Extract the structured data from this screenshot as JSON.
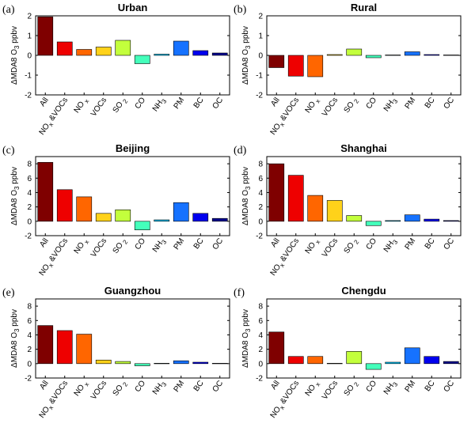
{
  "figure": {
    "colors": [
      "#7f0000",
      "#ee0000",
      "#ff6600",
      "#ffd21a",
      "#c3ff3c",
      "#44ffbb",
      "#00c7ff",
      "#1672ff",
      "#0000ee",
      "#00008f"
    ]
  },
  "chart_data": [
    {
      "type": "bar",
      "panel": "(a)",
      "title": "Urban",
      "ylabel": "ΔMDA8 O3 ppbv",
      "ylim": [
        -2,
        2
      ],
      "yticks": [
        -2,
        -1,
        0,
        1,
        2
      ],
      "categories": [
        "All",
        "NOx&VOCs",
        "NOx",
        "VOCs",
        "SO2",
        "CO",
        "NH3",
        "PM",
        "BC",
        "OC"
      ],
      "values": [
        1.95,
        0.68,
        0.3,
        0.42,
        0.76,
        -0.42,
        0.06,
        0.72,
        0.24,
        0.12
      ]
    },
    {
      "type": "bar",
      "panel": "(b)",
      "title": "Rural",
      "ylabel": "ΔMDA8 O3 ppbv",
      "ylim": [
        -2,
        2
      ],
      "yticks": [
        -2,
        -1,
        0,
        1,
        2
      ],
      "categories": [
        "All",
        "NOx&VOCs",
        "NOx",
        "VOCs",
        "SO2",
        "CO",
        "NH3",
        "PM",
        "BC",
        "OC"
      ],
      "values": [
        -0.62,
        -1.05,
        -1.08,
        0.04,
        0.32,
        -0.12,
        0.02,
        0.18,
        0.04,
        0.02
      ]
    },
    {
      "type": "bar",
      "panel": "(c)",
      "title": "Beijing",
      "ylabel": "ΔMDA8 O3 ppbv",
      "ylim": [
        -2,
        9
      ],
      "yticks": [
        -2,
        0,
        2,
        4,
        6,
        8
      ],
      "categories": [
        "All",
        "NOx&VOCs",
        "NOx",
        "VOCs",
        "SO2",
        "CO",
        "NH3",
        "PM",
        "BC",
        "OC"
      ],
      "values": [
        8.2,
        4.4,
        3.4,
        1.1,
        1.6,
        -1.2,
        0.2,
        2.6,
        1.1,
        0.4
      ]
    },
    {
      "type": "bar",
      "panel": "(d)",
      "title": "Shanghai",
      "ylabel": "ΔMDA8 O3 ppbv",
      "ylim": [
        -2,
        9
      ],
      "yticks": [
        -2,
        0,
        2,
        4,
        6,
        8
      ],
      "categories": [
        "All",
        "NOx&VOCs",
        "NOx",
        "VOCs",
        "SO2",
        "CO",
        "NH3",
        "PM",
        "BC",
        "OC"
      ],
      "values": [
        8.0,
        6.4,
        3.6,
        2.9,
        0.8,
        -0.6,
        0.1,
        0.9,
        0.3,
        0.1
      ]
    },
    {
      "type": "bar",
      "panel": "(e)",
      "title": "Guangzhou",
      "ylabel": "ΔMDA8 O3 ppbv",
      "ylim": [
        -2,
        9
      ],
      "yticks": [
        -2,
        0,
        2,
        4,
        6,
        8
      ],
      "categories": [
        "All",
        "NOx&VOCs",
        "NOx",
        "VOCs",
        "SO2",
        "CO",
        "NH3",
        "PM",
        "BC",
        "OC"
      ],
      "values": [
        5.3,
        4.6,
        4.1,
        0.5,
        0.3,
        -0.3,
        0.05,
        0.4,
        0.2,
        0.05
      ]
    },
    {
      "type": "bar",
      "panel": "(f)",
      "title": "Chengdu",
      "ylabel": "ΔMDA8 O3 ppbv",
      "ylim": [
        -2,
        9
      ],
      "yticks": [
        -2,
        0,
        2,
        4,
        6,
        8
      ],
      "categories": [
        "All",
        "NOx&VOCs",
        "NOx",
        "VOCs",
        "SO2",
        "CO",
        "NH3",
        "PM",
        "BC",
        "OC"
      ],
      "values": [
        4.4,
        1.0,
        1.0,
        0.05,
        1.7,
        -0.8,
        0.2,
        2.2,
        1.0,
        0.3
      ]
    }
  ]
}
